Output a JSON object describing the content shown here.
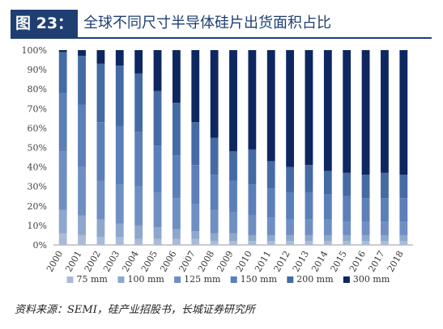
{
  "header": {
    "tag": "图 23：",
    "title": "全球不同尺寸半导体硅片出货面积占比"
  },
  "source": "资料来源：SEMI，硅产业招股书，长城证券研究所",
  "colors": {
    "75 mm": "#aabbd6",
    "100 mm": "#8ea7cc",
    "125 mm": "#6f8fc2",
    "150 mm": "#5b7fb9",
    "200 mm": "#456ba5",
    "300 mm": "#0e2760",
    "brand": "#1f3f73"
  },
  "chart_data": {
    "type": "bar",
    "stacked": true,
    "categories": [
      "2000",
      "2001",
      "2002",
      "2003",
      "2004",
      "2005",
      "2006",
      "2007",
      "2008",
      "2009",
      "2010",
      "2011",
      "2012",
      "2013",
      "2014",
      "2015",
      "2016",
      "2017",
      "2018"
    ],
    "yticks": [
      "0%",
      "10%",
      "20%",
      "30%",
      "40%",
      "50%",
      "60%",
      "70%",
      "80%",
      "90%",
      "100%"
    ],
    "ylim": [
      0,
      100
    ],
    "legend_position": "bottom",
    "grid": false,
    "series": [
      {
        "name": "75 mm",
        "values": [
          6,
          5,
          4,
          4,
          3,
          3,
          3,
          3,
          2,
          2,
          2,
          2,
          2,
          2,
          2,
          2,
          2,
          2,
          2
        ]
      },
      {
        "name": "100 mm",
        "values": [
          12,
          10,
          9,
          7,
          7,
          6,
          5,
          4,
          4,
          4,
          3,
          3,
          3,
          3,
          3,
          3,
          3,
          3,
          3
        ]
      },
      {
        "name": "125 mm",
        "values": [
          30,
          25,
          20,
          20,
          20,
          18,
          16,
          14,
          12,
          11,
          10,
          9,
          8,
          8,
          8,
          7,
          7,
          7,
          7
        ]
      },
      {
        "name": "150 mm",
        "values": [
          30,
          32,
          30,
          30,
          28,
          24,
          22,
          20,
          18,
          16,
          16,
          15,
          14,
          14,
          13,
          13,
          12,
          12,
          12
        ]
      },
      {
        "name": "200 mm",
        "values": [
          21,
          25,
          30,
          31,
          30,
          28,
          27,
          22,
          19,
          15,
          18,
          14,
          13,
          14,
          12,
          12,
          12,
          13,
          12
        ]
      },
      {
        "name": "300 mm",
        "values": [
          1,
          3,
          7,
          8,
          12,
          21,
          27,
          37,
          45,
          52,
          51,
          57,
          60,
          59,
          62,
          63,
          64,
          63,
          64
        ]
      }
    ]
  }
}
